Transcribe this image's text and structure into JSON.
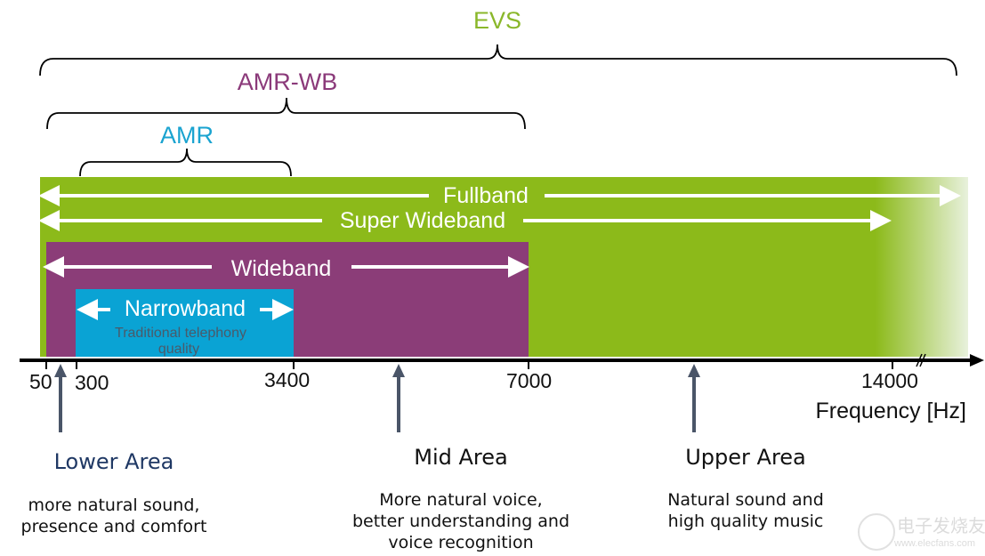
{
  "codecs": {
    "evs": {
      "label": "EVS",
      "color": "#8ab72a"
    },
    "amr_wb": {
      "label": "AMR-WB",
      "color": "#8b3a7a"
    },
    "amr": {
      "label": "AMR",
      "color": "#1aa3d0"
    }
  },
  "bands": {
    "fullband": "Fullband",
    "super_wideband": "Super Wideband",
    "wideband": "Wideband",
    "narrowband": "Narrowband",
    "narrowband_note_1": "Traditional telephony",
    "narrowband_note_2": "quality"
  },
  "colors": {
    "fullband": "#8cba1a",
    "wideband": "#8b3d78",
    "narrowband": "#0aa3d4",
    "area_arrow": "#4a5568"
  },
  "axis": {
    "ticks": [
      "50",
      "300",
      "3400",
      "7000",
      "14000"
    ],
    "label": "Frequency [Hz]"
  },
  "areas": [
    {
      "title": "Lower Area",
      "lines": [
        "more natural sound,",
        "presence and comfort"
      ]
    },
    {
      "title": "Mid Area",
      "lines": [
        "More natural voice,",
        "better understanding and",
        "voice recognition"
      ]
    },
    {
      "title": "Upper Area",
      "lines": [
        "Natural sound and",
        "high quality music"
      ]
    }
  ],
  "watermark": {
    "text_cn": "电子发烧友",
    "url": "www.elecfans.com"
  }
}
